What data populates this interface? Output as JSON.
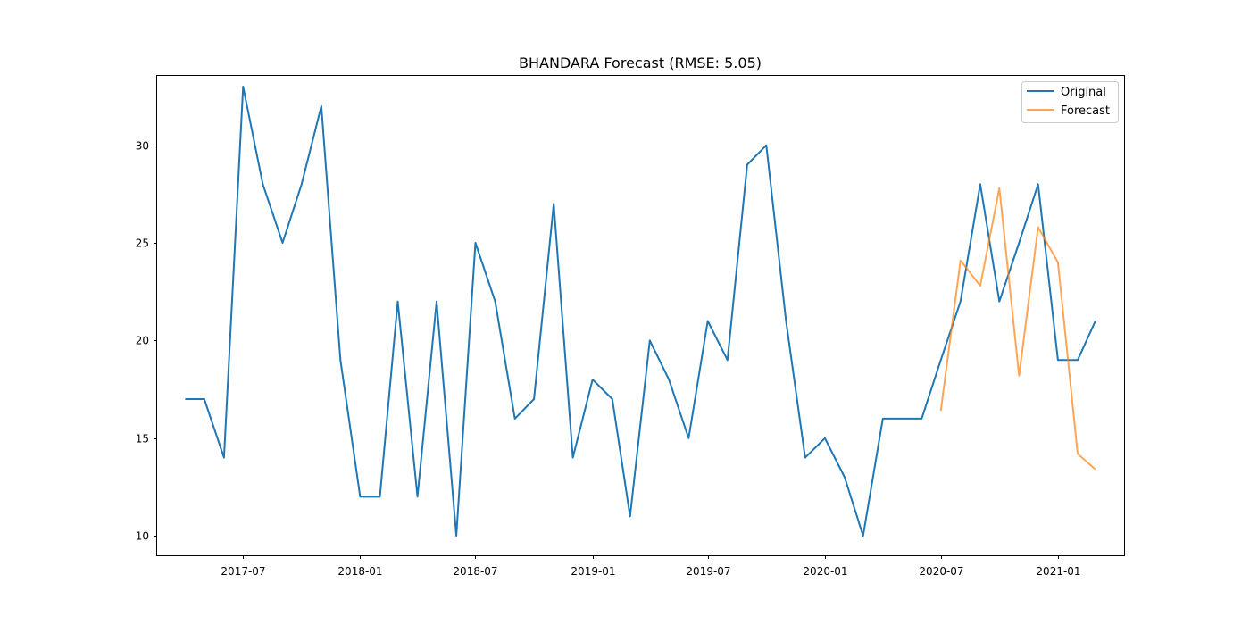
{
  "chart_data": {
    "type": "line",
    "title": "BHANDARA Forecast (RMSE: 5.05)",
    "xlabel": "",
    "ylabel": "",
    "x_range": [
      "2017-02-16",
      "2021-04-15"
    ],
    "ylim": [
      9.0,
      33.55
    ],
    "x_ticks": [
      "2017-07",
      "2018-01",
      "2018-07",
      "2019-01",
      "2019-07",
      "2020-01",
      "2020-07",
      "2021-01"
    ],
    "y_ticks": [
      10,
      15,
      20,
      25,
      30
    ],
    "grid": false,
    "legend_position": "top-right",
    "series": [
      {
        "name": "Original",
        "color": "#1f77b4",
        "points": [
          [
            "2017-04",
            17
          ],
          [
            "2017-05",
            17
          ],
          [
            "2017-06",
            14
          ],
          [
            "2017-07",
            33
          ],
          [
            "2017-08",
            28
          ],
          [
            "2017-09",
            25
          ],
          [
            "2017-10",
            28
          ],
          [
            "2017-11",
            32
          ],
          [
            "2017-12",
            19
          ],
          [
            "2018-01",
            12
          ],
          [
            "2018-02",
            12
          ],
          [
            "2018-03",
            22
          ],
          [
            "2018-04",
            12
          ],
          [
            "2018-05",
            22
          ],
          [
            "2018-06",
            10
          ],
          [
            "2018-07",
            25
          ],
          [
            "2018-08",
            22
          ],
          [
            "2018-09",
            16
          ],
          [
            "2018-10",
            17
          ],
          [
            "2018-11",
            27
          ],
          [
            "2018-12",
            14
          ],
          [
            "2019-01",
            18
          ],
          [
            "2019-02",
            17
          ],
          [
            "2019-03",
            11
          ],
          [
            "2019-04",
            20
          ],
          [
            "2019-05",
            18
          ],
          [
            "2019-06",
            15
          ],
          [
            "2019-07",
            21
          ],
          [
            "2019-08",
            19
          ],
          [
            "2019-09",
            29
          ],
          [
            "2019-10",
            30
          ],
          [
            "2019-11",
            21
          ],
          [
            "2019-12",
            14
          ],
          [
            "2020-01",
            15
          ],
          [
            "2020-02",
            13
          ],
          [
            "2020-03",
            10
          ],
          [
            "2020-04",
            16
          ],
          [
            "2020-05",
            16
          ],
          [
            "2020-06",
            16
          ],
          [
            "2020-07",
            19
          ],
          [
            "2020-08",
            22
          ],
          [
            "2020-09",
            28
          ],
          [
            "2020-10",
            22
          ],
          [
            "2020-11",
            25
          ],
          [
            "2020-12",
            28
          ],
          [
            "2021-01",
            19
          ],
          [
            "2021-02",
            19
          ],
          [
            "2021-03",
            21
          ]
        ]
      },
      {
        "name": "Forecast",
        "color": "#ff7f0e",
        "points": [
          [
            "2020-07",
            16.4
          ],
          [
            "2020-08",
            24.1
          ],
          [
            "2020-09",
            22.8
          ],
          [
            "2020-10",
            27.8
          ],
          [
            "2020-11",
            18.2
          ],
          [
            "2020-12",
            25.8
          ],
          [
            "2021-01",
            24.0
          ],
          [
            "2021-02",
            14.2
          ],
          [
            "2021-03",
            13.4
          ]
        ]
      }
    ]
  }
}
